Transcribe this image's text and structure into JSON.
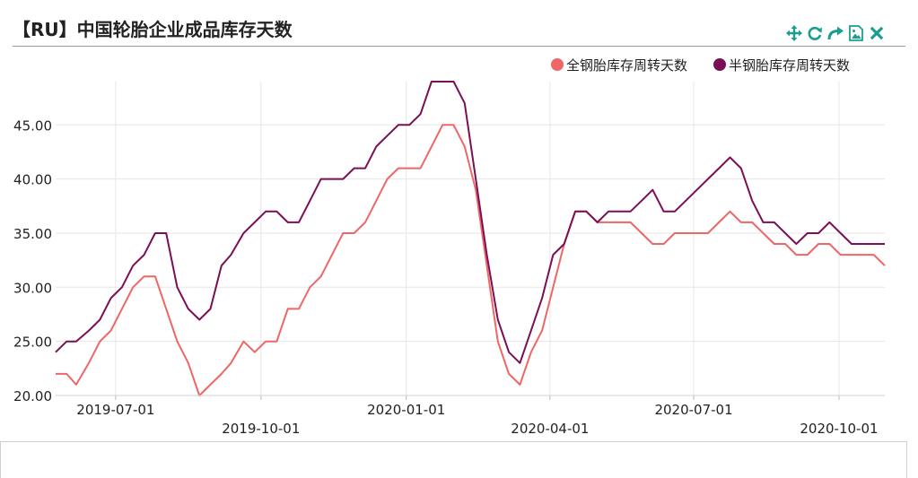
{
  "title": "【RU】中国轮胎企业成品库存天数",
  "toolbar": [
    {
      "icon": "move-icon",
      "name": "toolbar-move-button"
    },
    {
      "icon": "refresh-icon",
      "name": "toolbar-refresh-button"
    },
    {
      "icon": "share-icon",
      "name": "toolbar-share-button"
    },
    {
      "icon": "image-icon",
      "name": "toolbar-image-button"
    },
    {
      "icon": "close-icon",
      "name": "toolbar-close-button"
    }
  ],
  "colors": {
    "toolbar": "#1a9e8f",
    "series_all_steel": "#ee6666",
    "series_semi_steel": "#7a0f55",
    "grid": "#e6e6e6"
  },
  "chart_data": {
    "type": "line",
    "title": "【RU】中国轮胎企业成品库存天数",
    "xlabel": "",
    "ylabel": "",
    "ylim": [
      20,
      49
    ],
    "yticks": [
      "20.00",
      "25.00",
      "30.00",
      "35.00",
      "40.00",
      "45.00"
    ],
    "yticks_values": [
      20,
      25,
      30,
      35,
      40,
      45
    ],
    "xticks": [
      "2019-07-01",
      "2019-10-01",
      "2020-01-01",
      "2020-04-01",
      "2020-07-01",
      "2020-10-01"
    ],
    "grid": true,
    "legend_position": "top-right",
    "x": [
      "2019-05-24",
      "2019-05-31",
      "2019-06-06",
      "2019-06-14",
      "2019-06-21",
      "2019-06-28",
      "2019-07-05",
      "2019-07-12",
      "2019-07-19",
      "2019-07-26",
      "2019-08-02",
      "2019-08-09",
      "2019-08-16",
      "2019-08-23",
      "2019-08-30",
      "2019-09-06",
      "2019-09-12",
      "2019-09-20",
      "2019-09-27",
      "2019-10-04",
      "2019-10-11",
      "2019-10-18",
      "2019-10-25",
      "2019-11-01",
      "2019-11-08",
      "2019-11-15",
      "2019-11-22",
      "2019-11-29",
      "2019-12-06",
      "2019-12-13",
      "2019-12-20",
      "2019-12-27",
      "2020-01-03",
      "2020-01-10",
      "2020-01-17",
      "2020-01-24",
      "2020-01-31",
      "2020-02-07",
      "2020-02-14",
      "2020-02-21",
      "2020-02-28",
      "2020-03-06",
      "2020-03-13",
      "2020-03-20",
      "2020-03-27",
      "2020-04-03",
      "2020-04-10",
      "2020-04-17",
      "2020-04-24",
      "2020-05-01",
      "2020-05-08",
      "2020-05-15",
      "2020-05-22",
      "2020-05-29",
      "2020-06-05",
      "2020-06-12",
      "2020-06-19",
      "2020-06-26",
      "2020-07-03",
      "2020-07-10",
      "2020-07-17",
      "2020-07-24",
      "2020-07-31",
      "2020-08-07",
      "2020-08-14",
      "2020-08-21",
      "2020-08-28",
      "2020-09-04",
      "2020-09-11",
      "2020-09-18",
      "2020-09-25",
      "2020-10-02",
      "2020-10-09",
      "2020-10-16",
      "2020-10-23",
      "2020-10-30"
    ],
    "series": [
      {
        "name": "全钢胎库存周转天数",
        "color": "#ee6666",
        "values": [
          22,
          22,
          21,
          23,
          25,
          26,
          28,
          30,
          31,
          31,
          28,
          25,
          23,
          20,
          21,
          22,
          23,
          25,
          24,
          25,
          25,
          28,
          28,
          30,
          31,
          33,
          35,
          35,
          36,
          38,
          40,
          41,
          41,
          41,
          43,
          45,
          45,
          43,
          39,
          32,
          25,
          22,
          21,
          24,
          26,
          30,
          34,
          37,
          37,
          36,
          36,
          36,
          36,
          35,
          34,
          34,
          35,
          35,
          35,
          35,
          36,
          37,
          36,
          36,
          35,
          34,
          34,
          33,
          33,
          34,
          34,
          33,
          33,
          33,
          33,
          32
        ]
      },
      {
        "name": "半钢胎库存周转天数",
        "color": "#7a0f55",
        "values": [
          24,
          25,
          25,
          26,
          27,
          29,
          30,
          32,
          33,
          35,
          35,
          30,
          28,
          27,
          28,
          32,
          33,
          35,
          36,
          37,
          37,
          36,
          36,
          38,
          40,
          40,
          40,
          41,
          41,
          43,
          44,
          45,
          45,
          46,
          49,
          49,
          49,
          47,
          40,
          33,
          27,
          24,
          23,
          26,
          29,
          33,
          34,
          37,
          37,
          36,
          37,
          37,
          37,
          38,
          39,
          37,
          37,
          38,
          39,
          40,
          41,
          42,
          41,
          38,
          36,
          36,
          35,
          34,
          35,
          35,
          36,
          35,
          34,
          34,
          34,
          34
        ]
      }
    ]
  }
}
